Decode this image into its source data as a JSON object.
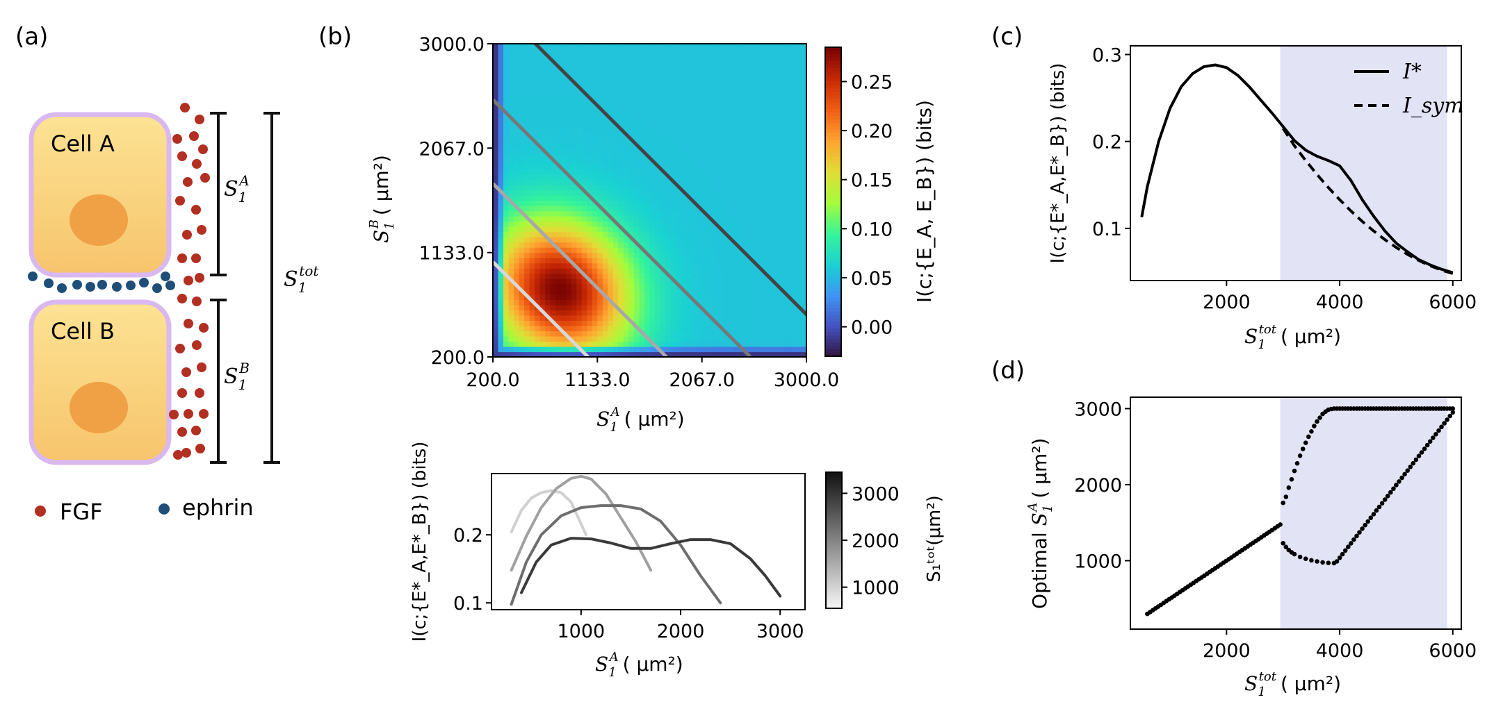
{
  "panel_labels": {
    "a": "(a)",
    "b": "(b)",
    "c": "(c)",
    "d": "(d)"
  },
  "colors": {
    "fgf": "#b22f22",
    "ephrin": "#1f4e79",
    "cell_fill_top": "#fbe08f",
    "cell_fill_bottom": "#f6c36b",
    "membrane": "#d9b8f0",
    "nucleus": "#f0a045",
    "shade": "#e3e3f6"
  },
  "schematic": {
    "cell_a": "Cell A",
    "cell_b": "Cell B",
    "bracket_a": {
      "base": "S",
      "sub": "1",
      "sup": "A"
    },
    "bracket_b": {
      "base": "S",
      "sub": "1",
      "sup": "B"
    },
    "bracket_tot": {
      "base": "S",
      "sub": "1",
      "sup": "tot"
    },
    "legend": {
      "fgf": "FGF",
      "ephrin": "ephrin"
    }
  },
  "chart_data": [
    {
      "id": "b_heatmap",
      "type": "heatmap",
      "xlabel": {
        "base": "S",
        "sub": "1",
        "sup": "A",
        "unit": "( μm²)"
      },
      "ylabel": {
        "base": "S",
        "sub": "1",
        "sup": "B",
        "unit": "( μm²)"
      },
      "x_ticks": [
        "200.0",
        "1133.0",
        "2067.0",
        "3000.0"
      ],
      "y_ticks": [
        "200.0",
        "1133.0",
        "2067.0",
        "3000.0"
      ],
      "xlim": [
        200,
        3000
      ],
      "ylim": [
        200,
        3000
      ],
      "peak": {
        "x": 800,
        "y": 800,
        "value": 0.285
      },
      "colorbar": {
        "label": "I(c;{E_A, E_B})  (bits)",
        "ticks": [
          "0.25",
          "0.20",
          "0.15",
          "0.10",
          "0.05",
          "0.00"
        ],
        "tick_values": [
          0.25,
          0.2,
          0.15,
          0.1,
          0.05,
          0.0
        ],
        "range": [
          -0.03,
          0.285
        ]
      },
      "diagonals": [
        {
          "S_tot": 1250,
          "shade": "#d8d8d8"
        },
        {
          "S_tot": 1950,
          "shade": "#a8a8a8"
        },
        {
          "S_tot": 2700,
          "shade": "#777777"
        },
        {
          "S_tot": 3580,
          "shade": "#444444"
        }
      ]
    },
    {
      "id": "b_lines",
      "type": "line",
      "xlabel": {
        "base": "S",
        "sub": "1",
        "sup": "A",
        "unit": "( μm²)"
      },
      "ylabel": "I(c;{E*_A,E*_B}) (bits)",
      "x_ticks": [
        "1000",
        "2000",
        "3000"
      ],
      "x_tick_values": [
        1000,
        2000,
        3000
      ],
      "y_ticks": [
        "0.1",
        "0.2"
      ],
      "y_tick_values": [
        0.1,
        0.2
      ],
      "xlim": [
        100,
        3250
      ],
      "ylim": [
        0.09,
        0.29
      ],
      "colorbar": {
        "label": "S₁ᵗᵒᵗ(μm²)",
        "ticks": [
          "3000",
          "2000",
          "1000"
        ],
        "tick_values": [
          3000,
          2000,
          1000
        ],
        "range": [
          550,
          3450
        ]
      },
      "series": [
        {
          "name": "S_tot=1250",
          "color": "#d0d0d0",
          "x": [
            300,
            400,
            500,
            600,
            700,
            800,
            900,
            950,
            1000,
            1050
          ],
          "y": [
            0.204,
            0.236,
            0.254,
            0.262,
            0.265,
            0.262,
            0.248,
            0.232,
            0.216,
            0.2
          ]
        },
        {
          "name": "S_tot=1950",
          "color": "#a0a0a0",
          "x": [
            300,
            450,
            600,
            750,
            900,
            1000,
            1100,
            1250,
            1400,
            1550,
            1700
          ],
          "y": [
            0.148,
            0.198,
            0.24,
            0.268,
            0.283,
            0.286,
            0.282,
            0.26,
            0.225,
            0.19,
            0.148
          ]
        },
        {
          "name": "S_tot=2700",
          "color": "#6e6e6e",
          "x": [
            300,
            450,
            600,
            800,
            1000,
            1200,
            1400,
            1600,
            1800,
            2000,
            2200,
            2400
          ],
          "y": [
            0.098,
            0.16,
            0.2,
            0.228,
            0.24,
            0.243,
            0.243,
            0.238,
            0.22,
            0.185,
            0.14,
            0.1
          ]
        },
        {
          "name": "S_tot=3400",
          "color": "#3a3a3a",
          "x": [
            400,
            550,
            700,
            900,
            1100,
            1300,
            1500,
            1700,
            1900,
            2100,
            2300,
            2500,
            2700,
            2850,
            3000
          ],
          "y": [
            0.115,
            0.16,
            0.185,
            0.195,
            0.194,
            0.188,
            0.18,
            0.18,
            0.187,
            0.193,
            0.193,
            0.187,
            0.165,
            0.14,
            0.11
          ]
        }
      ]
    },
    {
      "id": "c",
      "type": "line",
      "xlabel": {
        "base": "S",
        "sub": "1",
        "sup": "tot",
        "unit": "( μm²)"
      },
      "ylabel": "I(c;{E*_A,E*_B}) (bits)",
      "x_ticks": [
        "2000",
        "4000",
        "6000"
      ],
      "x_tick_values": [
        2000,
        4000,
        6000
      ],
      "y_ticks": [
        "0.1",
        "0.2",
        "0.3"
      ],
      "y_tick_values": [
        0.1,
        0.2,
        0.3
      ],
      "xlim": [
        300,
        6150
      ],
      "ylim": [
        0.04,
        0.31
      ],
      "shaded_region": [
        2950,
        5900
      ],
      "legend": [
        {
          "label": "I*",
          "style": "solid"
        },
        {
          "label": "I_sym",
          "style": "dashed"
        }
      ],
      "series": [
        {
          "name": "I*",
          "style": "solid",
          "x": [
            500,
            600,
            800,
            1000,
            1200,
            1400,
            1600,
            1800,
            2000,
            2200,
            2400,
            2600,
            2800,
            3000,
            3200,
            3400,
            3600,
            3800,
            4000,
            4200,
            4400,
            4600,
            4800,
            5000,
            5200,
            5400,
            5600,
            5800,
            6000
          ],
          "y": [
            0.113,
            0.148,
            0.2,
            0.238,
            0.263,
            0.278,
            0.286,
            0.288,
            0.285,
            0.276,
            0.263,
            0.248,
            0.233,
            0.217,
            0.201,
            0.19,
            0.183,
            0.178,
            0.172,
            0.155,
            0.133,
            0.114,
            0.097,
            0.083,
            0.073,
            0.064,
            0.058,
            0.053,
            0.049
          ]
        },
        {
          "name": "I_sym",
          "style": "dashed",
          "x": [
            3000,
            3200,
            3400,
            3600,
            3800,
            4000,
            4200,
            4400,
            4600,
            4800,
            5000,
            5200,
            5400,
            5600,
            5800,
            6000
          ],
          "y": [
            0.215,
            0.195,
            0.178,
            0.162,
            0.147,
            0.133,
            0.12,
            0.108,
            0.097,
            0.087,
            0.078,
            0.07,
            0.063,
            0.057,
            0.052,
            0.048
          ]
        }
      ]
    },
    {
      "id": "d",
      "type": "scatter",
      "xlabel": {
        "base": "S",
        "sub": "1",
        "sup": "tot",
        "unit": "( μm²)"
      },
      "ylabel": {
        "prefix": "Optimal ",
        "base": "S",
        "sub": "1",
        "sup": "A",
        "unit": "( μm²)"
      },
      "x_ticks": [
        "2000",
        "4000",
        "6000"
      ],
      "x_tick_values": [
        2000,
        4000,
        6000
      ],
      "y_ticks": [
        "1000",
        "2000",
        "3000"
      ],
      "y_tick_values": [
        1000,
        2000,
        3000
      ],
      "xlim": [
        300,
        6150
      ],
      "ylim": [
        100,
        3150
      ],
      "shaded_region": [
        2950,
        5900
      ],
      "series": [
        {
          "name": "symmetric branch",
          "x_range": [
            600,
            2950
          ],
          "n_points": 50
        },
        {
          "name": "upper branch",
          "x": [
            3000,
            3050,
            3100,
            3150,
            3200,
            3250,
            3300,
            3350,
            3400,
            3450,
            3500,
            3550,
            3600,
            3650,
            3700,
            3750,
            3800,
            3850,
            3900
          ],
          "y": [
            1760,
            1840,
            1960,
            2070,
            2180,
            2280,
            2380,
            2470,
            2550,
            2630,
            2700,
            2770,
            2830,
            2880,
            2930,
            2960,
            2985,
            2995,
            3000
          ]
        },
        {
          "name": "upper plateau",
          "x_range": [
            3950,
            6000
          ],
          "y": 3000,
          "n_points": 42
        },
        {
          "name": "lower branch",
          "x": [
            3000,
            3050,
            3100,
            3150,
            3200,
            3300,
            3400,
            3500,
            3600,
            3700,
            3800,
            3900
          ],
          "y": [
            1230,
            1180,
            1140,
            1110,
            1085,
            1050,
            1025,
            1005,
            990,
            978,
            970,
            968
          ]
        },
        {
          "name": "lower ramp",
          "x_range": [
            3950,
            6000
          ],
          "y_range": [
            990,
            2950
          ],
          "n_points": 42
        }
      ]
    }
  ]
}
